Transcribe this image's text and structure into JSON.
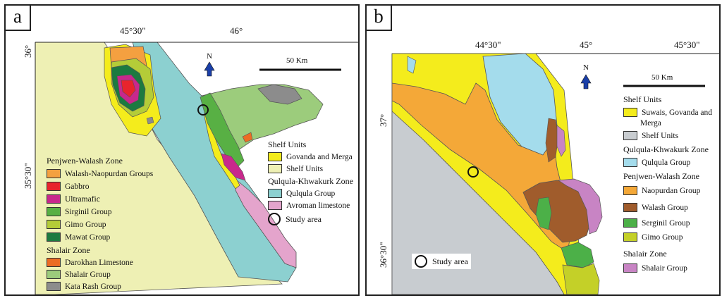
{
  "panel_a": {
    "letter": "a",
    "top_ticks": [
      "45°30\"",
      "46°"
    ],
    "left_ticks": [
      "36°",
      "35°30\""
    ],
    "north": "N",
    "scale": "50 Km",
    "legend_left": {
      "headings": [
        "Penjwen-Walash Zone",
        "Shalair Zone"
      ],
      "penjwen": [
        {
          "label": "Walash-Naopurdan Groups",
          "color": "#f4a040"
        },
        {
          "label": "Gabbro",
          "color": "#e8242c"
        },
        {
          "label": "Ultramafic",
          "color": "#c8288c"
        },
        {
          "label": "Sirginil Group",
          "color": "#58b044"
        },
        {
          "label": "Gimo Group",
          "color": "#b4cc38"
        },
        {
          "label": "Mawat Group",
          "color": "#1c7a40"
        }
      ],
      "shalair": [
        {
          "label": "Darokhan Limestone",
          "color": "#ec6c24"
        },
        {
          "label": "Shalair Group",
          "color": "#9ccc7c"
        },
        {
          "label": "Kata Rash Group",
          "color": "#8c8c8c"
        }
      ]
    },
    "legend_right": {
      "headings": [
        "Shelf Units",
        "Qulqula-Khwakurk Zone"
      ],
      "shelf": [
        {
          "label": "Govanda and Merga",
          "color": "#f4ec1c"
        },
        {
          "label": "Shelf Units",
          "color": "#eef0b4"
        }
      ],
      "qulqula": [
        {
          "label": "Qulqula Group",
          "color": "#8cd0d0"
        },
        {
          "label": "Avroman limestone",
          "color": "#e4a4cc"
        }
      ],
      "study": "Study area"
    }
  },
  "panel_b": {
    "letter": "b",
    "top_ticks": [
      "44°30\"",
      "45°",
      "45°30\""
    ],
    "left_ticks": [
      "37°",
      "36°30\""
    ],
    "north": "N",
    "scale": "50 Km",
    "legend": {
      "headings": [
        "Shelf Units",
        "Qulqula-Khwakurk Zone",
        "Penjwen-Walash Zone",
        "Shalair Zone"
      ],
      "shelf": [
        {
          "label": "Suwais, Govanda and",
          "label2": "Merga",
          "color": "#f4ec1c"
        },
        {
          "label": "Shelf Units",
          "color": "#c8ccd0"
        }
      ],
      "qulqula": [
        {
          "label": "Qulqula Group",
          "color": "#a4dcec"
        }
      ],
      "penjwen": [
        {
          "label": "Naopurdan Group",
          "color": "#f4a838"
        },
        {
          "label": "Walash Group",
          "color": "#a05c2c"
        },
        {
          "label": "Serginil Group",
          "color": "#4cb048"
        },
        {
          "label": "Gimo Group",
          "color": "#c4d028"
        }
      ],
      "shalair": [
        {
          "label": "Shalair Group",
          "color": "#c884c4"
        }
      ]
    },
    "study": "Study area"
  }
}
